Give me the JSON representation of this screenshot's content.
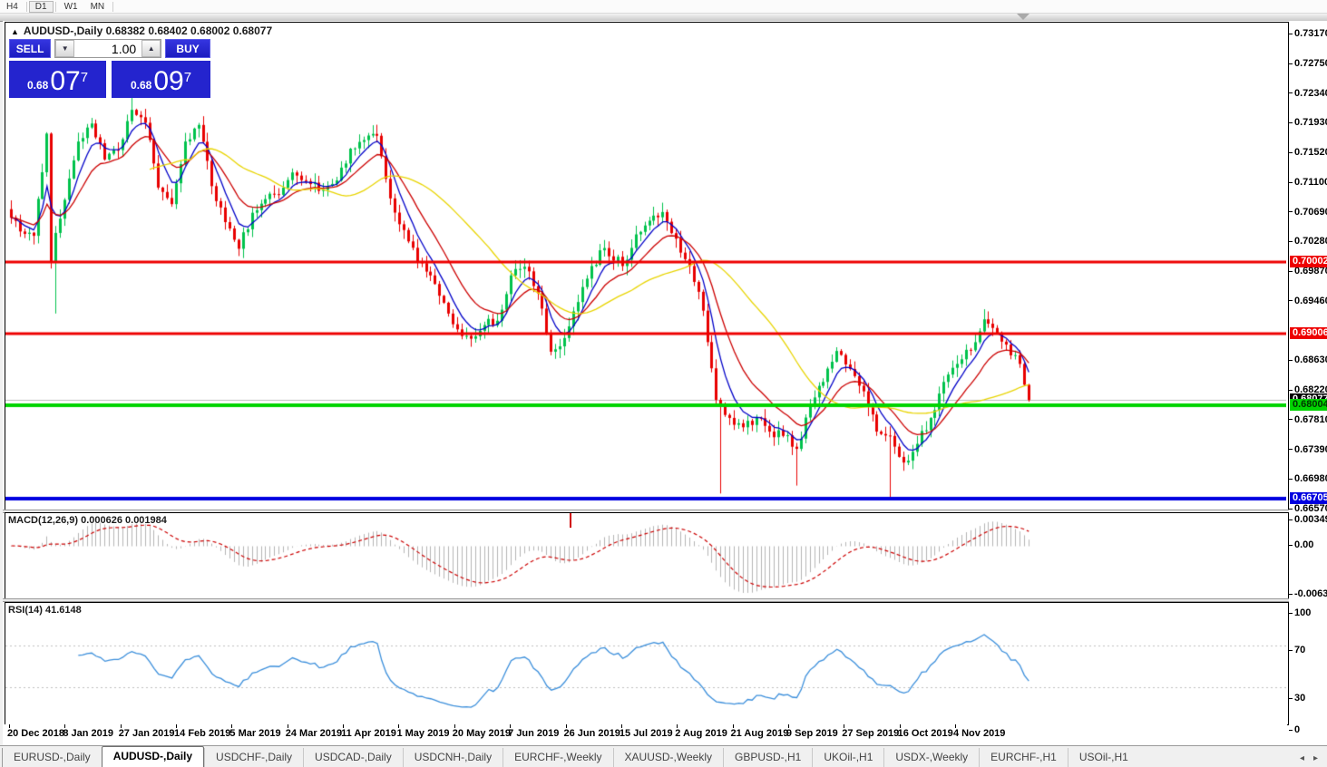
{
  "toolbar": {
    "timeframes": [
      {
        "label": "H4",
        "active": false
      },
      {
        "label": "D1",
        "active": true
      },
      {
        "label": "W1",
        "active": false
      },
      {
        "label": "MN",
        "active": false
      }
    ]
  },
  "header": {
    "title": "AUDUSD-,Daily  0.68382 0.68402 0.68002 0.68077",
    "triangle_icon": "▲"
  },
  "trade_panel": {
    "sell_label": "SELL",
    "buy_label": "BUY",
    "volume": "1.00",
    "spinner_down_icon": "▼",
    "spinner_up_icon": "▲",
    "sell_price": {
      "small": "0.68",
      "big": "07",
      "sup": "7"
    },
    "buy_price": {
      "small": "0.68",
      "big": "09",
      "sup": "7"
    }
  },
  "chart_data": {
    "type": "candlestick",
    "symbol": "AUDUSD-",
    "timeframe": "Daily",
    "title": "AUDUSD-,Daily  0.68382 0.68402 0.68002 0.68077",
    "x_labels": [
      "20 Dec 2018",
      "8 Jan 2019",
      "27 Jan 2019",
      "14 Feb 2019",
      "5 Mar 2019",
      "24 Mar 2019",
      "11 Apr 2019",
      "1 May 2019",
      "20 May 2019",
      "7 Jun 2019",
      "26 Jun 2019",
      "15 Jul 2019",
      "2 Aug 2019",
      "21 Aug 2019",
      "9 Sep 2019",
      "27 Sep 2019",
      "16 Oct 2019",
      "4 Nov 2019"
    ],
    "y_axis": {
      "ticks": [
        0.7317,
        0.7275,
        0.7234,
        0.7193,
        0.7152,
        0.711,
        0.7069,
        0.7028,
        0.6987,
        0.6946,
        0.6863,
        0.6822,
        0.6781,
        0.6739,
        0.6698,
        0.6657
      ],
      "top_value": 0.7317,
      "bottom_value": 0.6657
    },
    "hlines": [
      {
        "price": 0.70002,
        "label": "0.70002",
        "color": "#ee0000",
        "width": 3,
        "text": "#ffffff"
      },
      {
        "price": 0.69006,
        "label": "0.69006",
        "color": "#ee0000",
        "width": 3,
        "text": "#ffffff"
      },
      {
        "price": 0.68004,
        "label": "0.68004",
        "color": "#00d400",
        "width": 4,
        "text": "#003300"
      },
      {
        "price": 0.66705,
        "label": "0.66705",
        "color": "#0000e0",
        "width": 4,
        "text": "#ffffff"
      }
    ],
    "current_price": {
      "value": 0.68077,
      "label": "0.68077",
      "box_color": "#000000",
      "text": "#ffffff",
      "line_color": "#bdbdbd"
    },
    "candle_count": 229,
    "bull_color": "#00c24c",
    "bear_color": "#e80000",
    "price_anchors": [
      [
        0,
        0.7061
      ],
      [
        2,
        0.7042
      ],
      [
        5,
        0.7036
      ],
      [
        8,
        0.7178
      ],
      [
        9,
        0.7
      ],
      [
        10,
        0.704
      ],
      [
        12,
        0.7086
      ],
      [
        15,
        0.7167
      ],
      [
        18,
        0.7192
      ],
      [
        21,
        0.7142
      ],
      [
        24,
        0.7155
      ],
      [
        27,
        0.7211
      ],
      [
        30,
        0.7193
      ],
      [
        33,
        0.7103
      ],
      [
        36,
        0.708
      ],
      [
        39,
        0.7167
      ],
      [
        42,
        0.719
      ],
      [
        45,
        0.7105
      ],
      [
        48,
        0.7055
      ],
      [
        51,
        0.7018
      ],
      [
        54,
        0.7068
      ],
      [
        57,
        0.7087
      ],
      [
        60,
        0.7093
      ],
      [
        63,
        0.7124
      ],
      [
        66,
        0.7112
      ],
      [
        70,
        0.71
      ],
      [
        73,
        0.7113
      ],
      [
        76,
        0.7157
      ],
      [
        79,
        0.7169
      ],
      [
        82,
        0.7175
      ],
      [
        85,
        0.7088
      ],
      [
        88,
        0.7044
      ],
      [
        91,
        0.6999
      ],
      [
        94,
        0.6981
      ],
      [
        97,
        0.6943
      ],
      [
        100,
        0.6906
      ],
      [
        103,
        0.6893
      ],
      [
        106,
        0.6912
      ],
      [
        109,
        0.6918
      ],
      [
        112,
        0.6981
      ],
      [
        115,
        0.6993
      ],
      [
        118,
        0.6956
      ],
      [
        121,
        0.6875
      ],
      [
        124,
        0.6894
      ],
      [
        127,
        0.6944
      ],
      [
        130,
        0.6994
      ],
      [
        133,
        0.7019
      ],
      [
        137,
        0.6994
      ],
      [
        140,
        0.7038
      ],
      [
        143,
        0.7057
      ],
      [
        146,
        0.7069
      ],
      [
        149,
        0.7032
      ],
      [
        152,
        0.6994
      ],
      [
        155,
        0.6932
      ],
      [
        158,
        0.6808
      ],
      [
        161,
        0.6783
      ],
      [
        164,
        0.677
      ],
      [
        167,
        0.6783
      ],
      [
        170,
        0.6764
      ],
      [
        173,
        0.6758
      ],
      [
        176,
        0.674
      ],
      [
        179,
        0.6801
      ],
      [
        182,
        0.6833
      ],
      [
        185,
        0.6876
      ],
      [
        188,
        0.6851
      ],
      [
        191,
        0.682
      ],
      [
        194,
        0.6764
      ],
      [
        197,
        0.6758
      ],
      [
        200,
        0.6721
      ],
      [
        203,
        0.6747
      ],
      [
        206,
        0.6783
      ],
      [
        209,
        0.6833
      ],
      [
        212,
        0.6858
      ],
      [
        215,
        0.6877
      ],
      [
        218,
        0.692
      ],
      [
        220,
        0.6908
      ],
      [
        222,
        0.6889
      ],
      [
        224,
        0.687
      ],
      [
        226,
        0.6858
      ],
      [
        228,
        0.68077
      ]
    ],
    "spikes": [
      {
        "i": 10,
        "low": 0.6928
      },
      {
        "i": 27,
        "high": 0.7232
      },
      {
        "i": 146,
        "high": 0.7082
      },
      {
        "i": 159,
        "low": 0.6678
      },
      {
        "i": 176,
        "low": 0.6689
      },
      {
        "i": 197,
        "low": 0.6671
      },
      {
        "i": 218,
        "high": 0.6934
      }
    ],
    "moving_averages": [
      {
        "type": "ema",
        "period": 6,
        "color": "#0000c8"
      },
      {
        "type": "ema",
        "period": 14,
        "color": "#cc0000"
      },
      {
        "type": "sma",
        "period": 32,
        "color": "#e8d400"
      }
    ],
    "macd": {
      "label": "MACD(12,26,9) 0.000626 0.001984",
      "fast": 12,
      "slow": 26,
      "signal": 9,
      "axis_ticks": [
        "0.00349",
        "0.00",
        "-0.00637"
      ],
      "hist_color": "#b4b4b4",
      "signal_color": "#cc0000"
    },
    "rsi": {
      "label": "RSI(14) 41.6148",
      "period": 14,
      "axis_ticks": [
        "100",
        "70",
        "30",
        "0"
      ],
      "levels": [
        70,
        30
      ],
      "color": "#3a8edb"
    }
  },
  "tab_bar": {
    "tabs": [
      {
        "label": "EURUSD-,Daily",
        "active": false
      },
      {
        "label": "AUDUSD-,Daily",
        "active": true
      },
      {
        "label": "USDCHF-,Daily",
        "active": false
      },
      {
        "label": "USDCAD-,Daily",
        "active": false
      },
      {
        "label": "USDCNH-,Daily",
        "active": false
      },
      {
        "label": "EURCHF-,Weekly",
        "active": false
      },
      {
        "label": "XAUUSD-,Weekly",
        "active": false
      },
      {
        "label": "GBPUSD-,H1",
        "active": false
      },
      {
        "label": "UKOil-,H1",
        "active": false
      },
      {
        "label": "USDX-,Weekly",
        "active": false
      },
      {
        "label": "EURCHF-,H1",
        "active": false
      },
      {
        "label": "USOil-,H1",
        "active": false
      }
    ],
    "scroll_left_icon": "◂",
    "scroll_right_icon": "▸"
  }
}
